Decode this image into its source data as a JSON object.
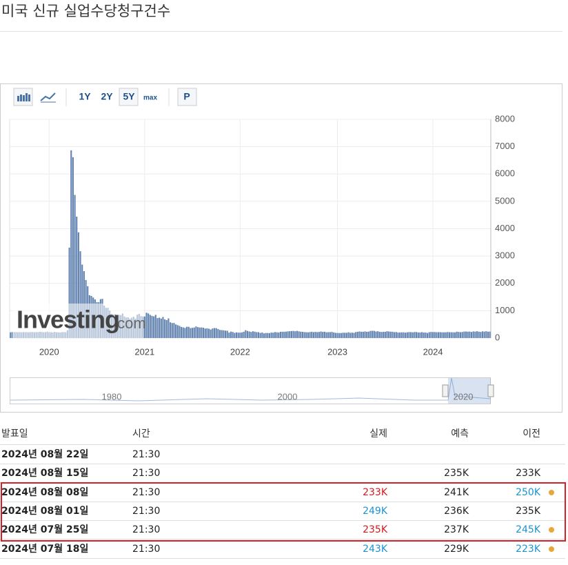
{
  "header": {
    "title": "미국 신규 실업수당청구건수"
  },
  "toolbar": {
    "buttons": [
      "1Y",
      "2Y",
      "5Y",
      "max",
      "P"
    ]
  },
  "chart_data": {
    "type": "bar",
    "color": "#6384b0",
    "grid": true,
    "watermark": [
      "Investing",
      ".com"
    ],
    "categories": [
      null,
      null,
      null,
      null,
      null,
      null,
      null,
      null,
      null,
      null,
      null,
      null,
      null,
      null,
      null,
      null,
      null,
      null,
      null,
      null,
      null,
      "2020",
      null,
      null,
      null,
      null,
      null,
      null,
      null,
      null,
      null,
      null,
      null,
      null,
      null,
      null,
      null,
      null,
      null,
      null,
      null,
      null,
      null,
      null,
      null,
      null,
      null,
      null,
      null,
      null,
      null,
      null,
      null,
      null,
      null,
      null,
      null,
      null,
      null,
      null,
      null,
      null,
      null,
      null,
      null,
      null,
      null,
      null,
      null,
      null,
      null,
      null,
      null,
      "2021",
      null,
      null,
      null,
      null,
      null,
      null,
      null,
      null,
      null,
      null,
      null,
      null,
      null,
      null,
      null,
      null,
      null,
      null,
      null,
      null,
      null,
      null,
      null,
      null,
      null,
      null,
      null,
      null,
      null,
      null,
      null,
      null,
      null,
      null,
      null,
      null,
      null,
      null,
      null,
      null,
      null,
      null,
      null,
      null,
      null,
      null,
      null,
      null,
      null,
      null,
      null,
      "2022",
      null,
      null,
      null,
      null,
      null,
      null,
      null,
      null,
      null,
      null,
      null,
      null,
      null,
      null,
      null,
      null,
      null,
      null,
      null,
      null,
      null,
      null,
      null,
      null,
      null,
      null,
      null,
      null,
      null,
      null,
      null,
      null,
      null,
      null,
      null,
      null,
      null,
      null,
      null,
      null,
      null,
      null,
      null,
      null,
      null,
      null,
      null,
      null,
      null,
      null,
      null,
      null,
      "2023",
      null,
      null,
      null,
      null,
      null,
      null,
      null,
      null,
      null,
      null,
      null,
      null,
      null,
      null,
      null,
      null,
      null,
      null,
      null,
      null,
      null,
      null,
      null,
      null,
      null,
      null,
      null,
      null,
      null,
      null,
      null,
      null,
      null,
      null,
      null,
      null,
      null,
      null,
      null,
      null,
      null,
      null,
      null,
      null,
      null,
      null,
      null,
      null,
      null,
      null,
      null,
      "2024",
      null,
      null,
      null,
      null,
      null,
      null,
      null,
      null,
      null,
      null,
      null,
      null,
      null,
      null,
      null,
      null,
      null,
      null,
      null,
      null,
      null,
      null,
      null,
      null,
      null,
      null,
      null,
      null,
      null,
      null,
      null
    ],
    "values": [
      209,
      220,
      214,
      217,
      212,
      217,
      210,
      218,
      215,
      214,
      213,
      219,
      218,
      212,
      221,
      215,
      227,
      220,
      213,
      216,
      234,
      212,
      214,
      205,
      223,
      211,
      211,
      203,
      216,
      219,
      211,
      282,
      3307,
      6867,
      6615,
      5237,
      4442,
      3867,
      3176,
      2687,
      2446,
      2123,
      1897,
      1566,
      1540,
      1482,
      1413,
      1310,
      1307,
      1422,
      1434,
      1186,
      1104,
      1106,
      1006,
      881,
      866,
      870,
      837,
      849,
      840,
      898,
      787,
      751,
      757,
      709,
      742,
      778,
      712,
      853,
      885,
      806,
      790,
      787,
      926,
      900,
      847,
      812,
      793,
      848,
      730,
      745,
      712,
      770,
      684,
      658,
      719,
      576,
      547,
      553,
      498,
      473,
      444,
      406,
      388,
      371,
      412,
      411,
      364,
      373,
      385,
      424,
      399,
      385,
      387,
      377,
      348,
      353,
      340,
      312,
      351,
      364,
      362,
      329,
      296,
      290,
      283,
      271,
      267,
      199,
      236,
      222,
      188,
      206,
      198,
      198,
      207,
      230,
      286,
      260,
      239,
      223,
      248,
      232,
      215,
      215,
      187,
      202,
      171,
      185,
      184,
      180,
      200,
      197,
      218,
      210,
      202,
      229,
      231,
      231,
      235,
      244,
      251,
      256,
      260,
      248,
      262,
      245,
      232,
      228,
      218,
      213,
      209,
      219,
      228,
      214,
      226,
      217,
      222,
      240,
      225,
      231,
      211,
      214,
      216,
      223,
      205,
      190,
      186,
      183,
      183,
      196,
      194,
      192,
      211,
      191,
      198,
      191,
      218,
      228,
      240,
      230,
      230,
      242,
      229,
      235,
      261,
      264,
      262,
      239,
      248,
      228,
      221,
      226,
      227,
      248,
      239,
      232,
      230,
      216,
      220,
      201,
      204,
      209,
      209,
      198,
      210,
      217,
      217,
      209,
      220,
      219,
      203,
      204,
      216,
      202,
      202,
      187,
      214,
      224,
      218,
      220,
      213,
      215,
      215,
      210,
      210,
      210,
      221,
      212,
      212,
      209,
      208,
      232,
      222,
      215,
      221,
      238,
      238,
      233,
      235,
      222,
      243,
      235,
      249,
      233,
      222,
      245,
      235,
      249,
      233,
      235
    ],
    "ylim": [
      0,
      8000
    ],
    "yticks": [
      0,
      1000,
      2000,
      3000,
      4000,
      5000,
      6000,
      7000,
      8000
    ]
  },
  "navigator": {
    "labels": [
      "1980",
      "2000",
      "2020"
    ]
  },
  "table": {
    "columns": [
      "발표일",
      "시간",
      "실제",
      "예측",
      "이전"
    ],
    "rows": [
      {
        "date": "2024년 08월 22일",
        "time": "21:30",
        "actual": null,
        "forecast": null,
        "previous": null
      },
      {
        "date": "2024년 08월 15일",
        "time": "21:30",
        "actual": null,
        "forecast": "235K",
        "previous": "233K"
      },
      {
        "date": "2024년 08월 08일",
        "time": "21:30",
        "actual": "233K",
        "forecast": "241K",
        "previous": "250K",
        "actual_color": "#d9151c",
        "previous_color": "#1a93cf",
        "previous_dot": true
      },
      {
        "date": "2024년 08월 01일",
        "time": "21:30",
        "actual": "249K",
        "forecast": "236K",
        "previous": "235K",
        "actual_color": "#1a93cf"
      },
      {
        "date": "2024년 07월 25일",
        "time": "21:30",
        "actual": "235K",
        "forecast": "237K",
        "previous": "245K",
        "actual_color": "#d9151c",
        "previous_color": "#1a93cf",
        "previous_dot": true
      },
      {
        "date": "2024년 07월 18일",
        "time": "21:30",
        "actual": "243K",
        "forecast": "229K",
        "previous": "223K",
        "actual_color": "#1a93cf",
        "previous_color": "#1a93cf",
        "previous_dot": true
      }
    ]
  }
}
